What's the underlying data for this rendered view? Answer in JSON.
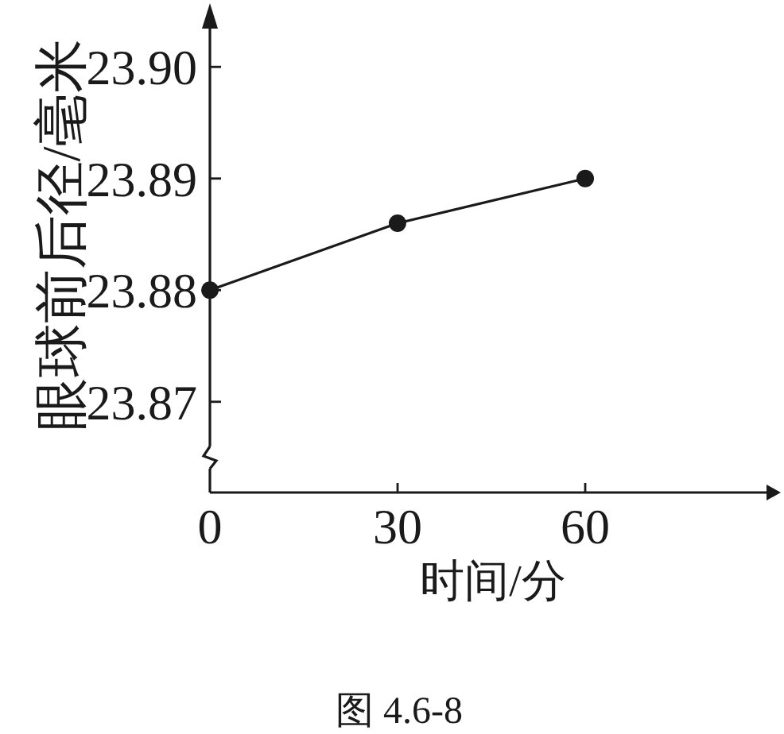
{
  "chart_data": {
    "type": "line",
    "xlabel": "时间/分",
    "ylabel": "眼球前后径/毫米",
    "annotations": [
      "图 4.6-8"
    ],
    "x": [
      0,
      30,
      60
    ],
    "values": [
      23.88,
      23.886,
      23.89
    ],
    "color": "#1a1a1a",
    "marker": "circle",
    "line_style": "solid",
    "xlim": [
      0,
      90
    ],
    "ylim": [
      23.866,
      23.904
    ],
    "xticks": [
      {
        "value": 0,
        "label": "0"
      },
      30,
      60
    ],
    "yticks": [
      23.87,
      23.88,
      23.89,
      {
        "value": 23.9,
        "label": "23.90"
      }
    ]
  }
}
